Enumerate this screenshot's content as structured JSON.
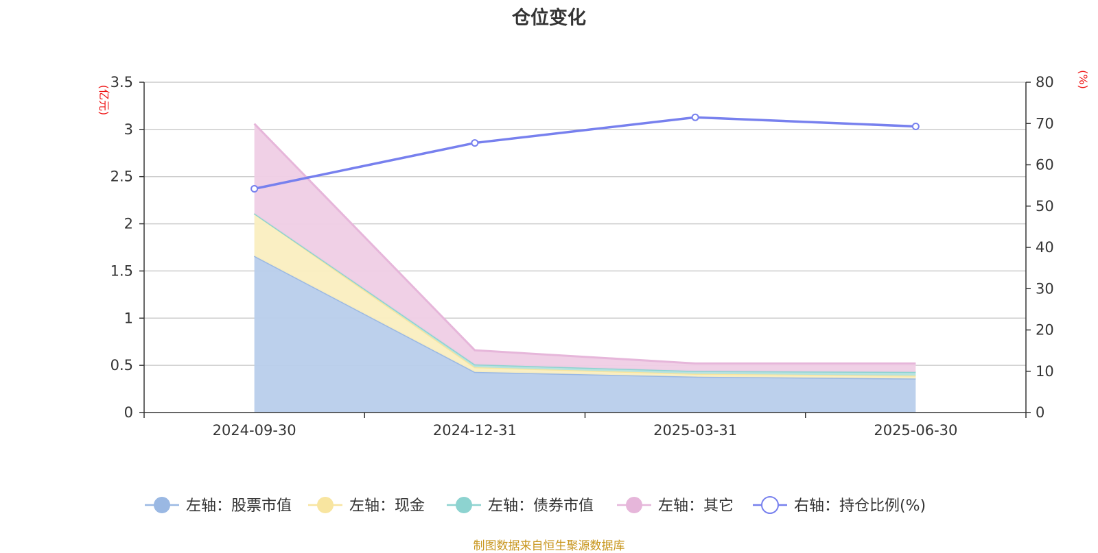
{
  "chart_data": {
    "type": "area",
    "title": "仓位变化",
    "source": "制图数据来自恒生聚源数据库",
    "categories": [
      "2024-09-30",
      "2024-12-31",
      "2025-03-31",
      "2025-06-30"
    ],
    "left_axis": {
      "unit": "(亿元)",
      "ylim": [
        0,
        3.5
      ],
      "ticks": [
        0,
        0.5,
        1,
        1.5,
        2,
        2.5,
        3,
        3.5
      ]
    },
    "right_axis": {
      "unit": "(%)",
      "ylim": [
        0,
        80
      ],
      "ticks": [
        0,
        10,
        20,
        30,
        40,
        50,
        60,
        70,
        80
      ]
    },
    "grid": true,
    "legend_position": "bottom",
    "stacked_series": [
      {
        "name": "左轴：股票市值",
        "axis": "left",
        "color": "#9ab8e3",
        "fill": "#b8cdeb",
        "values": [
          1.66,
          0.43,
          0.38,
          0.36
        ]
      },
      {
        "name": "左轴：现金",
        "axis": "left",
        "color": "#f8e5a0",
        "fill": "#faeec0",
        "values": [
          0.45,
          0.05,
          0.03,
          0.03
        ]
      },
      {
        "name": "左轴：债券市值",
        "axis": "left",
        "color": "#8dd3d0",
        "fill": "#b3e2df",
        "values": [
          0.0,
          0.03,
          0.03,
          0.04
        ]
      },
      {
        "name": "左轴：其它",
        "axis": "left",
        "color": "#e6b6da",
        "fill": "#efcde5",
        "values": [
          0.95,
          0.15,
          0.08,
          0.09
        ]
      }
    ],
    "line_series": [
      {
        "name": "右轴：持仓比例(%)",
        "axis": "right",
        "color": "#7780ee",
        "values": [
          54.2,
          65.3,
          71.5,
          69.3
        ]
      }
    ]
  }
}
